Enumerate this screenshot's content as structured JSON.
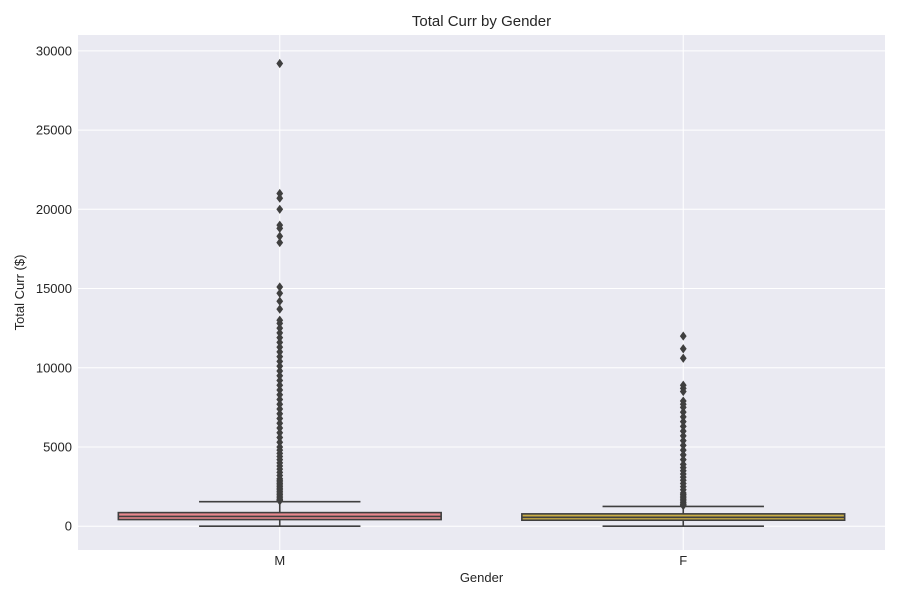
{
  "chart_data": {
    "type": "box",
    "title": "Total Curr by Gender",
    "xlabel": "Gender",
    "ylabel": "Total Curr ($)",
    "ylim": [
      -1500,
      31000
    ],
    "yticks": [
      0,
      5000,
      10000,
      15000,
      20000,
      25000,
      30000
    ],
    "grid": true,
    "categories": [
      "M",
      "F"
    ],
    "boxes": [
      {
        "category": "M",
        "color": "#e8888e",
        "whisker_low": 0,
        "q1": 420,
        "median": 620,
        "q3": 860,
        "whisker_high": 1550,
        "outliers": [
          29200,
          21000,
          20700,
          20000,
          19000,
          18800,
          18300,
          17900,
          15100,
          14700,
          14200,
          13700,
          13000,
          12800,
          12500,
          12200,
          11900,
          11600,
          11300,
          11000,
          10700,
          10400,
          10100,
          9800,
          9500,
          9200,
          8900,
          8600,
          8300,
          8000,
          7700,
          7400,
          7100,
          6800,
          6500,
          6200,
          5900,
          5600,
          5300,
          5000,
          4800,
          4600,
          4400,
          4200,
          4000,
          3800,
          3600,
          3400,
          3200,
          3000,
          2900,
          2800,
          2700,
          2600,
          2500,
          2400,
          2300,
          2200,
          2100,
          2000,
          1900,
          1800,
          1700,
          1650,
          1600
        ]
      },
      {
        "category": "F",
        "color": "#c9ad46",
        "whisker_low": 0,
        "q1": 380,
        "median": 560,
        "q3": 780,
        "whisker_high": 1250,
        "outliers": [
          12000,
          11200,
          10600,
          8900,
          8700,
          8500,
          7900,
          7700,
          7500,
          7200,
          6900,
          6600,
          6300,
          6000,
          5700,
          5400,
          5100,
          4800,
          4500,
          4200,
          3900,
          3700,
          3500,
          3300,
          3100,
          2900,
          2700,
          2500,
          2300,
          2100,
          2000,
          1900,
          1800,
          1700,
          1600,
          1500,
          1400,
          1350,
          1300
        ]
      }
    ]
  },
  "colors": {
    "plot_background": "#eaeaf2",
    "grid": "#ffffff",
    "box_edge": "#3f3f3f",
    "text": "#262626"
  }
}
